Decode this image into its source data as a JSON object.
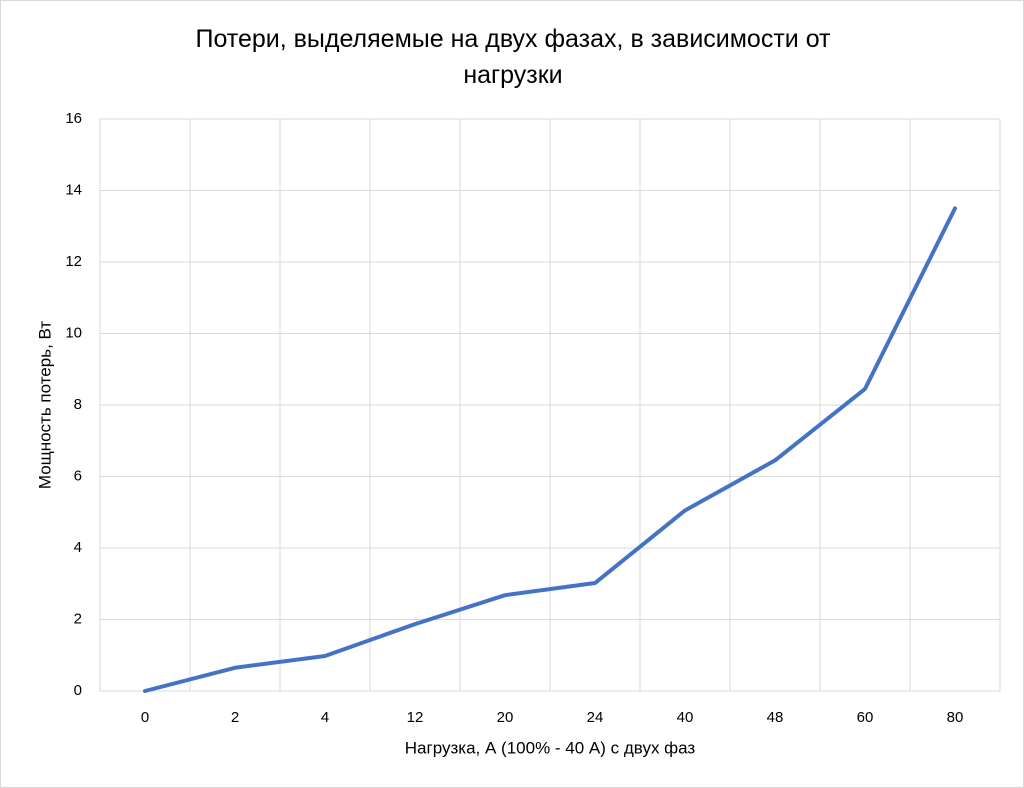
{
  "chart_data": {
    "type": "line",
    "title": "Потери, выделяемые на двух фазах, в зависимости от нагрузки",
    "x_label": "Нагрузка, А (100% - 40 А) с двух фаз",
    "y_label": "Мощность потерь, Вт",
    "categories": [
      "0",
      "2",
      "4",
      "12",
      "20",
      "24",
      "40",
      "48",
      "60",
      "80"
    ],
    "series": [
      {
        "name": "Мощность потерь",
        "color": "#4472c4",
        "values": [
          0,
          0.65,
          0.98,
          1.87,
          2.68,
          3.02,
          5.05,
          6.45,
          8.45,
          13.5
        ]
      }
    ],
    "ylim": [
      0,
      16
    ],
    "yticks": [
      0,
      2,
      4,
      6,
      8,
      10,
      12,
      14,
      16
    ],
    "grid": true
  }
}
